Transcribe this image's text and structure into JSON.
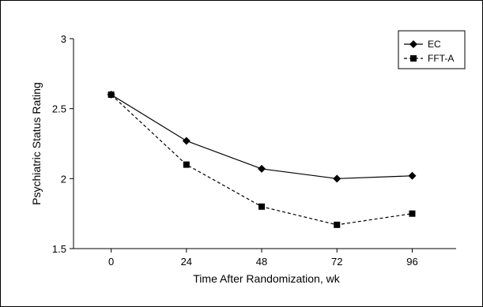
{
  "chart_data": {
    "type": "line",
    "x": [
      0,
      24,
      48,
      72,
      96
    ],
    "xlabel": "Time After Randomization, wk",
    "ylabel": "Psychiatric Status Rating",
    "xticks": [
      "0",
      "24",
      "48",
      "72",
      "96"
    ],
    "yticks": [
      "1.5",
      "2",
      "2.5",
      "3"
    ],
    "ylim": [
      1.5,
      3
    ],
    "grid": false,
    "legend_position": "top-right",
    "series": [
      {
        "name": "EC",
        "marker": "diamond",
        "line": "solid",
        "color": "#000000",
        "values": [
          2.6,
          2.27,
          2.07,
          2.0,
          2.02
        ]
      },
      {
        "name": "FFT-A",
        "marker": "square",
        "line": "dashed",
        "color": "#000000",
        "values": [
          2.6,
          2.1,
          1.8,
          1.67,
          1.75
        ]
      }
    ]
  }
}
